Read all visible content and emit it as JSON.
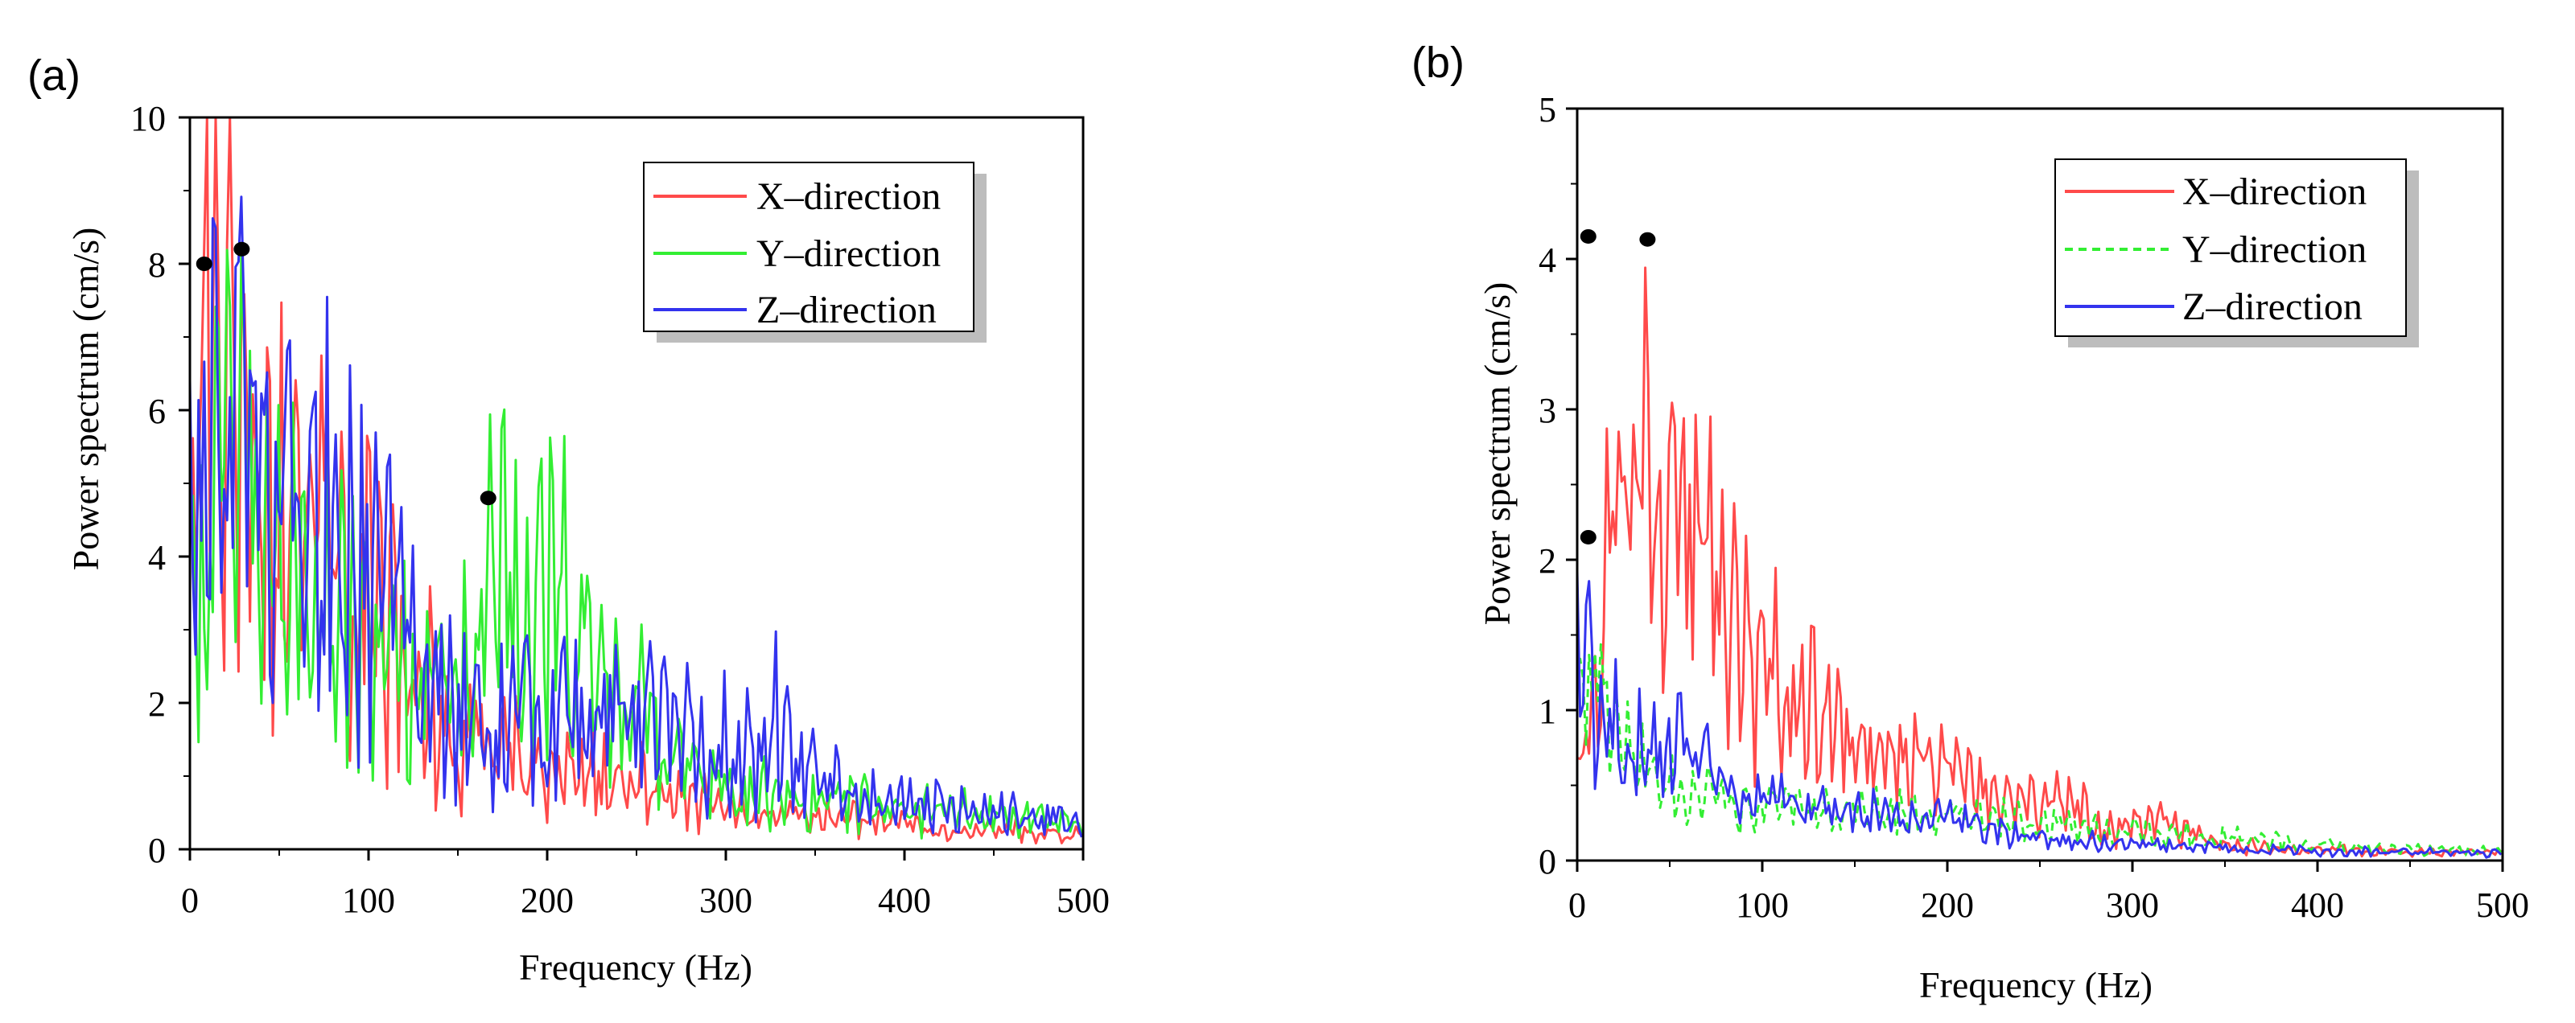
{
  "chart_data": [
    {
      "panel_label": "(a)",
      "type": "line",
      "xlabel": "Frequency (Hz)",
      "ylabel": "Power spectrum (cm/s)",
      "xlim": [
        0,
        500
      ],
      "ylim": [
        0,
        10
      ],
      "xticks": [
        "0",
        "100",
        "200",
        "300",
        "400",
        "500"
      ],
      "yticks": [
        "0",
        "2",
        "4",
        "6",
        "8",
        "10"
      ],
      "legend_position": "top-right",
      "series": [
        {
          "name": "X–direction",
          "color": "#ff4a4a",
          "dash": "solid",
          "anchors": [
            [
              0,
              4.5
            ],
            [
              5,
              6.8
            ],
            [
              8,
              7.9
            ],
            [
              15,
              7.9
            ],
            [
              30,
              5.2
            ],
            [
              50,
              4.6
            ],
            [
              75,
              4.8
            ],
            [
              90,
              4.2
            ],
            [
              100,
              4.0
            ],
            [
              110,
              2.8
            ],
            [
              150,
              1.7
            ],
            [
              200,
              1.1
            ],
            [
              250,
              0.9
            ],
            [
              300,
              0.5
            ],
            [
              400,
              0.35
            ],
            [
              500,
              0.2
            ]
          ],
          "amp": 0.5
        },
        {
          "name": "Y–direction",
          "color": "#33ee33",
          "dash": "solid",
          "anchors": [
            [
              0,
              3.0
            ],
            [
              25,
              5.5
            ],
            [
              50,
              4.0
            ],
            [
              80,
              3.2
            ],
            [
              100,
              3.2
            ],
            [
              130,
              2.0
            ],
            [
              150,
              2.4
            ],
            [
              168,
              3.8
            ],
            [
              185,
              3.6
            ],
            [
              200,
              3.7
            ],
            [
              230,
              2.4
            ],
            [
              270,
              1.4
            ],
            [
              300,
              0.8
            ],
            [
              400,
              0.55
            ],
            [
              500,
              0.35
            ]
          ],
          "amp": 0.5
        },
        {
          "name": "Z–direction",
          "color": "#3333ee",
          "dash": "solid",
          "anchors": [
            [
              0,
              4.5
            ],
            [
              28,
              6.0
            ],
            [
              50,
              4.6
            ],
            [
              80,
              4.3
            ],
            [
              100,
              4.2
            ],
            [
              120,
              2.6
            ],
            [
              150,
              1.7
            ],
            [
              200,
              1.7
            ],
            [
              250,
              1.8
            ],
            [
              300,
              1.4
            ],
            [
              325,
              1.8
            ],
            [
              350,
              0.9
            ],
            [
              400,
              0.6
            ],
            [
              500,
              0.35
            ]
          ],
          "amp": 0.55
        }
      ],
      "markers": [
        {
          "x": 8,
          "y": 8.0
        },
        {
          "x": 29,
          "y": 8.2
        },
        {
          "x": 167,
          "y": 4.8
        }
      ]
    },
    {
      "panel_label": "(b)",
      "type": "line",
      "xlabel": "Frequency (Hz)",
      "ylabel": "Power spectrum (cm/s)",
      "xlim": [
        0,
        500
      ],
      "ylim": [
        0,
        5
      ],
      "xticks": [
        "0",
        "100",
        "200",
        "300",
        "400",
        "500"
      ],
      "yticks": [
        "0",
        "1",
        "2",
        "3",
        "4",
        "5"
      ],
      "legend_position": "top-right",
      "series": [
        {
          "name": "X–direction",
          "color": "#ff4a4a",
          "dash": "solid",
          "anchors": [
            [
              0,
              0.6
            ],
            [
              10,
              1.2
            ],
            [
              20,
              2.2
            ],
            [
              30,
              2.6
            ],
            [
              40,
              2.7
            ],
            [
              60,
              2.3
            ],
            [
              80,
              1.7
            ],
            [
              100,
              1.3
            ],
            [
              120,
              1.1
            ],
            [
              150,
              0.8
            ],
            [
              180,
              0.65
            ],
            [
              200,
              0.6
            ],
            [
              230,
              0.4
            ],
            [
              260,
              0.38
            ],
            [
              275,
              0.4
            ],
            [
              280,
              0.2
            ],
            [
              320,
              0.25
            ],
            [
              350,
              0.1
            ],
            [
              400,
              0.07
            ],
            [
              500,
              0.05
            ]
          ],
          "amp": 0.4
        },
        {
          "name": "Y–direction",
          "color": "#33ee33",
          "dash": "dashed",
          "anchors": [
            [
              0,
              1.0
            ],
            [
              10,
              1.2
            ],
            [
              20,
              0.9
            ],
            [
              40,
              0.6
            ],
            [
              60,
              0.5
            ],
            [
              80,
              0.4
            ],
            [
              100,
              0.35
            ],
            [
              150,
              0.32
            ],
            [
              200,
              0.3
            ],
            [
              250,
              0.25
            ],
            [
              300,
              0.2
            ],
            [
              400,
              0.1
            ],
            [
              500,
              0.06
            ]
          ],
          "amp": 0.35
        },
        {
          "name": "Z–direction",
          "color": "#3333ee",
          "dash": "solid",
          "anchors": [
            [
              0,
              1.4
            ],
            [
              10,
              1.0
            ],
            [
              30,
              0.8
            ],
            [
              60,
              0.7
            ],
            [
              80,
              0.5
            ],
            [
              100,
              0.4
            ],
            [
              150,
              0.3
            ],
            [
              200,
              0.25
            ],
            [
              250,
              0.15
            ],
            [
              300,
              0.1
            ],
            [
              400,
              0.06
            ],
            [
              500,
              0.05
            ]
          ],
          "amp": 0.4
        }
      ],
      "markers": [
        {
          "x": 6,
          "y": 4.15
        },
        {
          "x": 38,
          "y": 4.13
        },
        {
          "x": 6,
          "y": 2.15
        }
      ]
    }
  ]
}
